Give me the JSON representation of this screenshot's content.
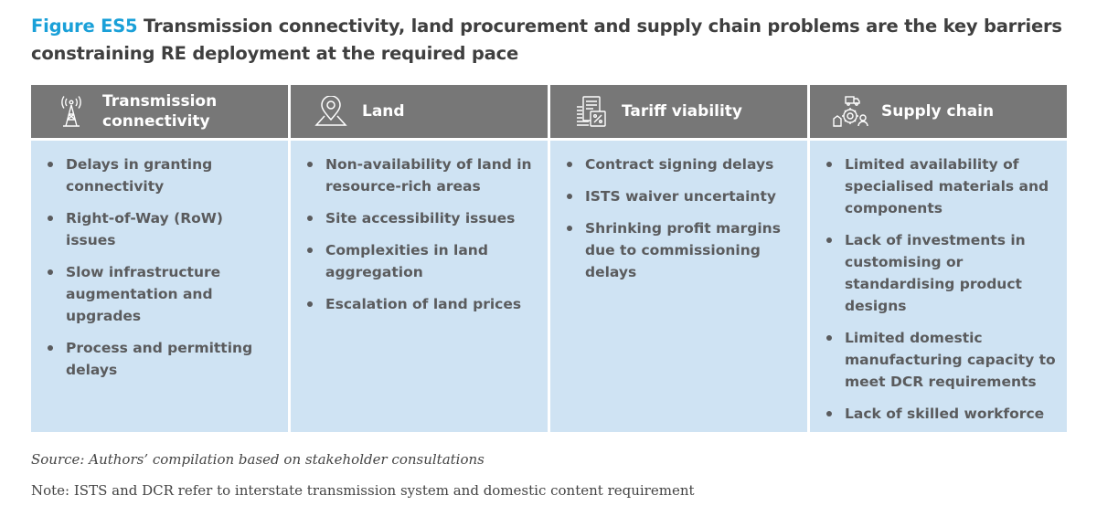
{
  "figure": {
    "label": "Figure ES5",
    "title": "Transmission connectivity, land procurement and supply chain problems are the key barriers constraining RE deployment at the required pace"
  },
  "columns": [
    {
      "heading": "Transmission connectivity",
      "icon": "transmission-tower-icon",
      "items": [
        "Delays in granting connectivity",
        "Right-of-Way (RoW) issues",
        "Slow infrastructure augmentation and upgrades",
        "Process and permitting delays"
      ]
    },
    {
      "heading": "Land",
      "icon": "location-pin-icon",
      "items": [
        "Non-availability of land in resource-rich areas",
        "Site accessibility issues",
        "Complexities in land aggregation",
        "Escalation of land prices"
      ]
    },
    {
      "heading": "Tariff viability",
      "icon": "tariff-document-icon",
      "items": [
        "Contract signing delays",
        "ISTS waiver uncertainty",
        "Shrinking profit margins due to commissioning delays"
      ]
    },
    {
      "heading": "Supply chain",
      "icon": "supply-chain-icon",
      "items": [
        "Limited availability of specialised materials and components",
        "Lack of investments in customising or standardising product designs",
        "Limited domestic manufacturing capacity to meet DCR requirements",
        "Lack of skilled workforce"
      ]
    }
  ],
  "source": "Source: Authors’ compilation based on stakeholder consultations",
  "note": "Note: ISTS and DCR refer to interstate transmission system and domestic content requirement",
  "colors": {
    "accent": "#1aa0d8",
    "header_bg": "#777777",
    "body_bg": "#cfe3f3"
  }
}
